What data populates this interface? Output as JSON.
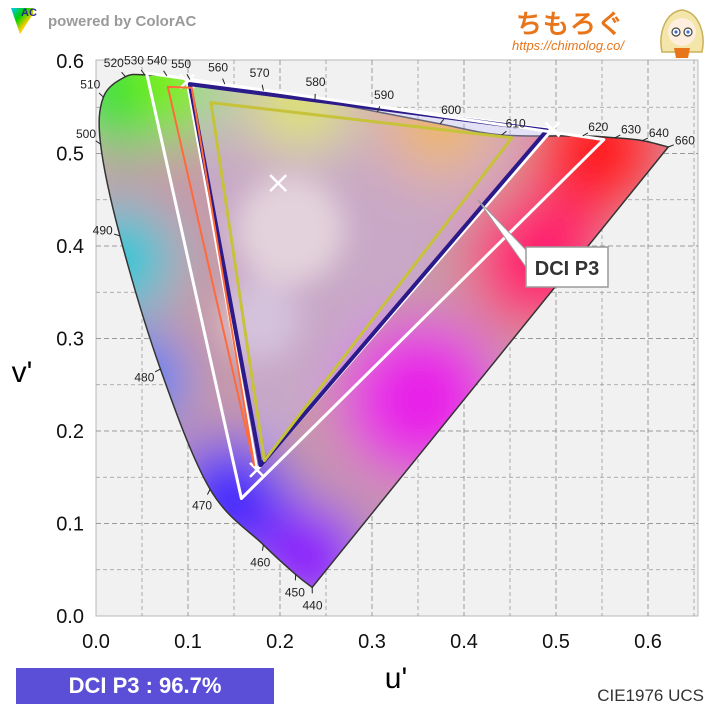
{
  "header": {
    "logo_text": "AC",
    "powered_by": "powered by ColorAC",
    "brand_title": "ちもろぐ",
    "brand_url": "https://chimolog.co/"
  },
  "badge": {
    "text": "DCI P3 : 96.7%",
    "color": "#5a4fd6"
  },
  "footer": {
    "space_label": "CIE1976 UCS"
  },
  "chart_data": {
    "type": "scatter",
    "title": "",
    "xlabel": "u'",
    "ylabel": "v'",
    "xlim": [
      0.0,
      0.65
    ],
    "ylim": [
      0.0,
      0.6
    ],
    "xticks": [
      "0.0",
      "0.1",
      "0.2",
      "0.3",
      "0.4",
      "0.5",
      "0.6"
    ],
    "yticks": [
      "0.0",
      "0.1",
      "0.2",
      "0.3",
      "0.4",
      "0.5",
      "0.6"
    ],
    "grid": true,
    "spectral_locus": [
      {
        "nm": "440",
        "u": 0.235,
        "v": 0.031
      },
      {
        "nm": "450",
        "u": 0.217,
        "v": 0.045
      },
      {
        "nm": "460",
        "u": 0.182,
        "v": 0.077
      },
      {
        "nm": "470",
        "u": 0.124,
        "v": 0.137
      },
      {
        "nm": "480",
        "u": 0.07,
        "v": 0.267
      },
      {
        "nm": "490",
        "u": 0.026,
        "v": 0.411
      },
      {
        "nm": "500",
        "u": 0.005,
        "v": 0.51
      },
      {
        "nm": "510",
        "u": 0.008,
        "v": 0.561
      },
      {
        "nm": "520",
        "u": 0.032,
        "v": 0.583
      },
      {
        "nm": "530",
        "u": 0.053,
        "v": 0.585
      },
      {
        "nm": "540",
        "u": 0.077,
        "v": 0.584
      },
      {
        "nm": "550",
        "u": 0.102,
        "v": 0.58
      },
      {
        "nm": "560",
        "u": 0.14,
        "v": 0.575
      },
      {
        "nm": "570",
        "u": 0.182,
        "v": 0.568
      },
      {
        "nm": "580",
        "u": 0.238,
        "v": 0.558
      },
      {
        "nm": "590",
        "u": 0.306,
        "v": 0.545
      },
      {
        "nm": "600",
        "u": 0.374,
        "v": 0.532
      },
      {
        "nm": "610",
        "u": 0.441,
        "v": 0.52
      },
      {
        "nm": "620",
        "u": 0.529,
        "v": 0.519
      },
      {
        "nm": "630",
        "u": 0.564,
        "v": 0.517
      },
      {
        "nm": "640",
        "u": 0.594,
        "v": 0.514
      },
      {
        "nm": "660",
        "u": 0.622,
        "v": 0.507
      }
    ],
    "series": [
      {
        "name": "DCI P3",
        "color": "#ffffff",
        "points": [
          [
            0.496,
            0.526
          ],
          [
            0.099,
            0.578
          ],
          [
            0.175,
            0.158
          ]
        ]
      },
      {
        "color": "#2a1a8a",
        "points": [
          [
            0.49,
            0.525
          ],
          [
            0.102,
            0.575
          ],
          [
            0.179,
            0.163
          ]
        ]
      },
      {
        "color": "#ff6a3a",
        "points": [
          [
            0.078,
            0.572
          ],
          [
            0.104,
            0.571
          ],
          [
            0.172,
            0.163
          ]
        ]
      },
      {
        "color": "#ffffff",
        "points": [
          [
            0.552,
            0.515
          ],
          [
            0.055,
            0.587
          ],
          [
            0.158,
            0.127
          ]
        ]
      },
      {
        "color": "#c6c23a",
        "points": [
          [
            0.452,
            0.517
          ],
          [
            0.125,
            0.555
          ],
          [
            0.183,
            0.168
          ]
        ]
      }
    ],
    "white_point": [
      0.198,
      0.468
    ],
    "annotation": {
      "text": "DCI P3",
      "target": [
        0.415,
        0.45
      ]
    }
  }
}
